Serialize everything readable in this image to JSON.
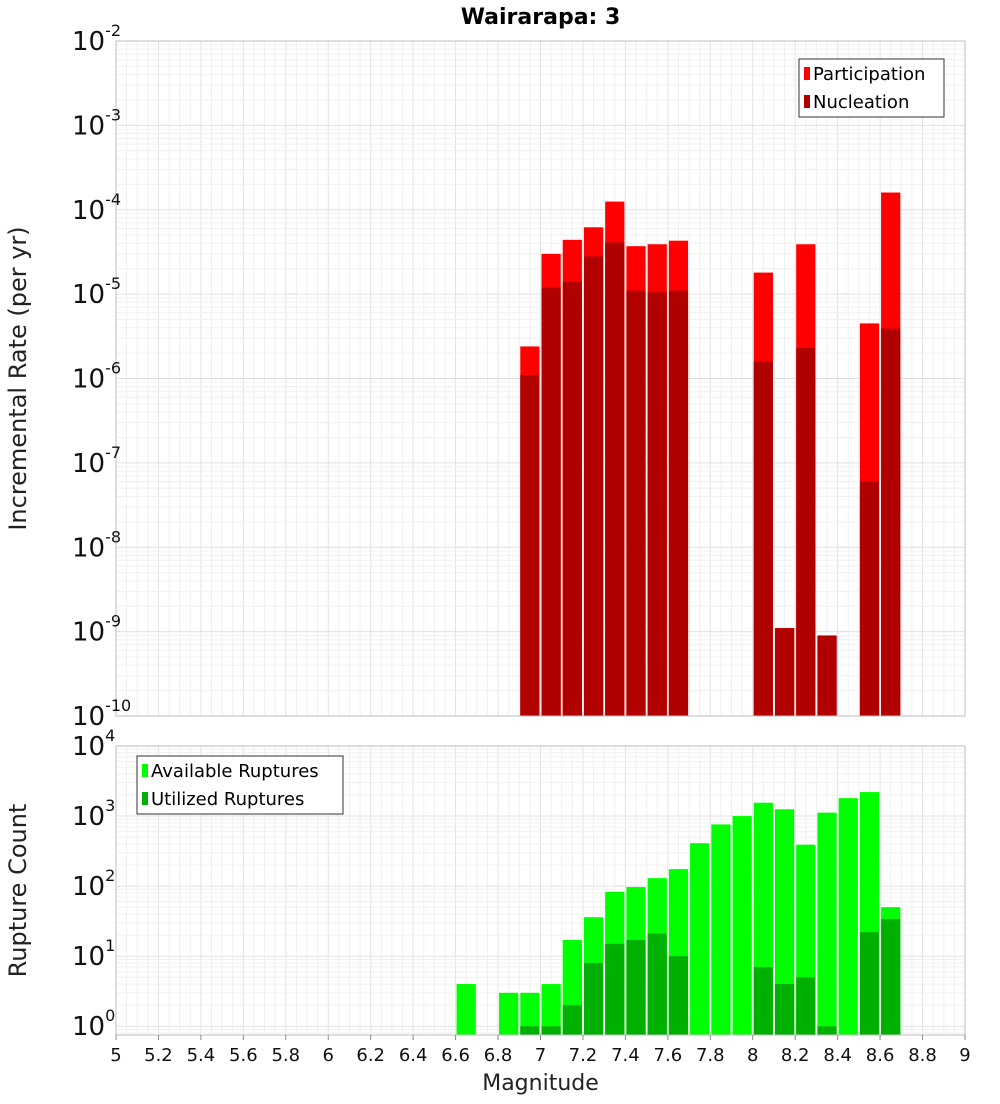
{
  "chart_data": [
    {
      "type": "bar",
      "title": "Wairarapa: 3",
      "ylabel": "Incremental Rate (per yr)",
      "xlabel": "",
      "xlim": [
        5,
        9
      ],
      "ylim": [
        1e-10,
        0.01
      ],
      "yscale": "log",
      "y_tick_exponents": [
        "-2",
        "-3",
        "-4",
        "-5",
        "-6",
        "-7",
        "-8",
        "-9",
        "-10"
      ],
      "y_tick_base": "10",
      "grid": true,
      "legend_position": "top-right",
      "bin_width": 0.1,
      "series": [
        {
          "name": "Participation",
          "color": "#ff0000",
          "points": [
            {
              "x": 6.9,
              "y": 2.4e-06
            },
            {
              "x": 7.0,
              "y": 3e-05
            },
            {
              "x": 7.1,
              "y": 4.4e-05
            },
            {
              "x": 7.2,
              "y": 6.2e-05
            },
            {
              "x": 7.3,
              "y": 0.000125
            },
            {
              "x": 7.4,
              "y": 3.7e-05
            },
            {
              "x": 7.5,
              "y": 3.9e-05
            },
            {
              "x": 7.6,
              "y": 4.3e-05
            },
            {
              "x": 8.0,
              "y": 1.8e-05
            },
            {
              "x": 8.1,
              "y": 1.1e-09
            },
            {
              "x": 8.2,
              "y": 3.9e-05
            },
            {
              "x": 8.3,
              "y": 9e-10
            },
            {
              "x": 8.5,
              "y": 4.5e-06
            },
            {
              "x": 8.6,
              "y": 0.00016
            }
          ]
        },
        {
          "name": "Nucleation",
          "color": "#b00000",
          "points": [
            {
              "x": 6.9,
              "y": 1.1e-06
            },
            {
              "x": 7.0,
              "y": 1.2e-05
            },
            {
              "x": 7.1,
              "y": 1.4e-05
            },
            {
              "x": 7.2,
              "y": 2.8e-05
            },
            {
              "x": 7.3,
              "y": 4.1e-05
            },
            {
              "x": 7.4,
              "y": 1.1e-05
            },
            {
              "x": 7.5,
              "y": 1.05e-05
            },
            {
              "x": 7.6,
              "y": 1.1e-05
            },
            {
              "x": 8.0,
              "y": 1.6e-06
            },
            {
              "x": 8.1,
              "y": 1.1e-09
            },
            {
              "x": 8.2,
              "y": 2.3e-06
            },
            {
              "x": 8.3,
              "y": 9e-10
            },
            {
              "x": 8.5,
              "y": 6e-08
            },
            {
              "x": 8.6,
              "y": 3.9e-06
            }
          ]
        }
      ]
    },
    {
      "type": "bar",
      "title": "",
      "ylabel": "Rupture Count",
      "xlabel": "Magnitude",
      "xlim": [
        5,
        9
      ],
      "ylim": [
        0.75,
        10000
      ],
      "yscale": "log",
      "y_tick_exponents": [
        "4",
        "3",
        "2",
        "1",
        "0"
      ],
      "y_tick_base": "10",
      "x_ticks": [
        "5",
        "5.2",
        "5.4",
        "5.6",
        "5.8",
        "6",
        "6.2",
        "6.4",
        "6.6",
        "6.8",
        "7",
        "7.2",
        "7.4",
        "7.6",
        "7.8",
        "8",
        "8.2",
        "8.4",
        "8.6",
        "8.8",
        "9"
      ],
      "grid": true,
      "legend_position": "top-left",
      "bin_width": 0.1,
      "series": [
        {
          "name": "Available Ruptures",
          "color": "#00ff00",
          "points": [
            {
              "x": 6.6,
              "y": 4
            },
            {
              "x": 6.8,
              "y": 3
            },
            {
              "x": 6.9,
              "y": 3
            },
            {
              "x": 7.0,
              "y": 4
            },
            {
              "x": 7.1,
              "y": 17
            },
            {
              "x": 7.2,
              "y": 36
            },
            {
              "x": 7.3,
              "y": 83
            },
            {
              "x": 7.4,
              "y": 97
            },
            {
              "x": 7.5,
              "y": 130
            },
            {
              "x": 7.6,
              "y": 175
            },
            {
              "x": 7.7,
              "y": 410
            },
            {
              "x": 7.8,
              "y": 760
            },
            {
              "x": 7.9,
              "y": 1000
            },
            {
              "x": 8.0,
              "y": 1550
            },
            {
              "x": 8.1,
              "y": 1250
            },
            {
              "x": 8.2,
              "y": 390
            },
            {
              "x": 8.3,
              "y": 1120
            },
            {
              "x": 8.4,
              "y": 1800
            },
            {
              "x": 8.5,
              "y": 2200
            },
            {
              "x": 8.6,
              "y": 50
            }
          ]
        },
        {
          "name": "Utilized Ruptures",
          "color": "#00b000",
          "points": [
            {
              "x": 6.9,
              "y": 1
            },
            {
              "x": 7.0,
              "y": 1
            },
            {
              "x": 7.1,
              "y": 2
            },
            {
              "x": 7.2,
              "y": 8
            },
            {
              "x": 7.3,
              "y": 15
            },
            {
              "x": 7.4,
              "y": 17
            },
            {
              "x": 7.5,
              "y": 21
            },
            {
              "x": 7.6,
              "y": 10
            },
            {
              "x": 8.0,
              "y": 7
            },
            {
              "x": 8.1,
              "y": 4
            },
            {
              "x": 8.2,
              "y": 5
            },
            {
              "x": 8.3,
              "y": 1
            },
            {
              "x": 8.5,
              "y": 22
            },
            {
              "x": 8.6,
              "y": 34
            }
          ]
        }
      ]
    }
  ]
}
